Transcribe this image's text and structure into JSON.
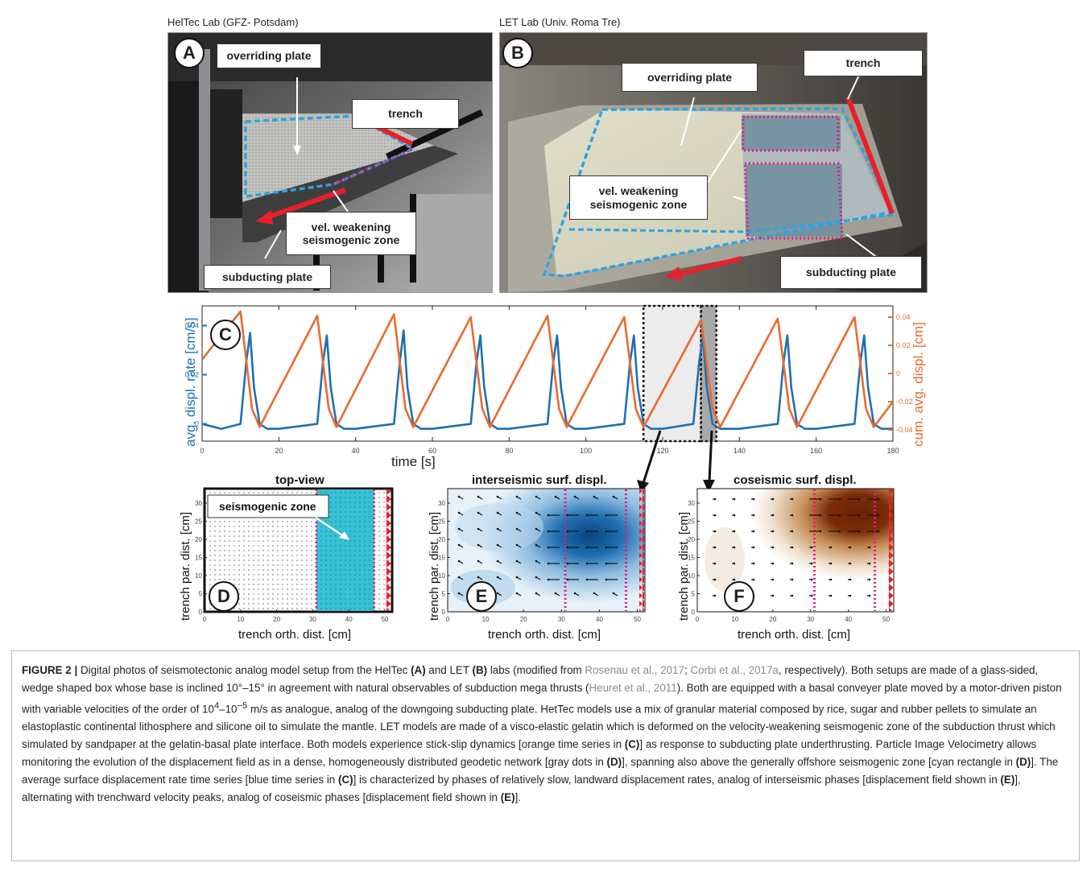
{
  "panel_a": {
    "title": "HelTec Lab (GFZ- Potsdam)",
    "letter": "A",
    "labels": {
      "overriding": "overriding plate",
      "trench": "trench",
      "seismogenic_1": "vel. weakening",
      "seismogenic_2": "seismogenic zone",
      "subducting": "subducting plate"
    }
  },
  "panel_b": {
    "title": "LET Lab (Univ. Roma Tre)",
    "letter": "B",
    "labels": {
      "overriding": "overriding plate",
      "trench": "trench",
      "seismogenic_1": "vel. weakening",
      "seismogenic_2": "seismogenic zone",
      "subducting": "subducting plate"
    }
  },
  "chart_data": [
    {
      "type": "line",
      "panel": "C",
      "xlabel": "time [s]",
      "ylabel_left": "avg. displ. rate [cm/s]",
      "ylabel_right": "cum. avg. displ. [cm]",
      "xlim": [
        0,
        180
      ],
      "ylim_left": [
        -0.007,
        0.048
      ],
      "ylim_right": [
        -0.048,
        0.048
      ],
      "xticks": [
        "0",
        "20",
        "40",
        "60",
        "80",
        "100",
        "120",
        "140",
        "160",
        "180"
      ],
      "yticks_left": [
        "0",
        "0.02",
        "0.04"
      ],
      "yticks_right": [
        "-0.04",
        "-0.02",
        "0",
        "0.02",
        "0.04"
      ],
      "series": [
        {
          "color": "#1f6fb2",
          "axis": "left",
          "x": [
            0,
            5,
            10,
            11.5,
            12.5,
            13.5,
            15,
            17,
            20,
            30,
            31.5,
            32.5,
            33.5,
            35,
            37,
            40,
            50,
            51.5,
            52.5,
            53.5,
            55,
            57,
            60,
            70,
            71.5,
            72.5,
            73.5,
            75,
            77,
            80,
            90,
            91.5,
            92.5,
            93.5,
            95,
            97,
            100,
            110,
            111.5,
            112.5,
            113.5,
            115,
            117,
            120,
            128,
            129.5,
            130.5,
            131.5,
            133,
            135,
            140,
            150,
            151.5,
            152.5,
            153.5,
            155,
            157,
            160,
            170,
            171.5,
            172.5,
            173.5,
            175,
            177,
            180
          ],
          "values": [
            0,
            -0.002,
            0,
            0.025,
            0.037,
            0.015,
            0,
            -0.002,
            -0.002,
            0,
            0.025,
            0.036,
            0.015,
            0,
            -0.002,
            -0.002,
            0,
            0.025,
            0.038,
            0.015,
            0,
            -0.002,
            -0.002,
            0,
            0.025,
            0.036,
            0.015,
            0,
            -0.002,
            -0.002,
            0,
            0.025,
            0.036,
            0.015,
            0,
            -0.002,
            -0.002,
            0,
            0.025,
            0.036,
            0.015,
            0,
            -0.002,
            -0.002,
            0,
            0.025,
            0.036,
            0.015,
            0,
            -0.002,
            -0.002,
            0,
            0.025,
            0.036,
            0.015,
            0,
            -0.002,
            -0.002,
            0,
            0.025,
            0.036,
            0.015,
            0,
            -0.002,
            -0.002
          ]
        },
        {
          "color": "#ec6a2c",
          "axis": "right",
          "x": [
            0,
            10,
            13,
            15,
            30,
            33,
            35,
            50,
            53,
            55,
            70,
            73,
            75,
            90,
            93,
            95,
            110,
            113,
            115,
            130,
            133,
            135,
            150,
            153,
            155,
            170,
            173,
            175,
            180
          ],
          "values": [
            0.01,
            0.044,
            -0.025,
            -0.038,
            0.041,
            -0.025,
            -0.038,
            0.042,
            -0.025,
            -0.038,
            0.04,
            -0.025,
            -0.038,
            0.041,
            -0.025,
            -0.038,
            0.04,
            -0.025,
            -0.038,
            0.038,
            -0.025,
            -0.038,
            0.039,
            -0.025,
            -0.038,
            0.04,
            -0.025,
            -0.038,
            -0.02
          ]
        }
      ],
      "highlights": [
        {
          "kind": "interseismic",
          "x": [
            115,
            130
          ]
        },
        {
          "kind": "coseismic",
          "x": [
            130,
            134
          ]
        }
      ]
    },
    {
      "type": "heatmap",
      "panel": "D",
      "title": "top-view",
      "xlabel": "trench orth. dist. [cm]",
      "ylabel": "trench par. dist. [cm]",
      "xlim": [
        0,
        52
      ],
      "ylim": [
        0,
        34
      ],
      "xticks": [
        "0",
        "10",
        "20",
        "30",
        "40",
        "50"
      ],
      "yticks": [
        "0",
        "5",
        "10",
        "15",
        "20",
        "25",
        "30"
      ],
      "seismogenic_zone_x": [
        31,
        47
      ],
      "label": "seismogenic zone"
    },
    {
      "type": "heatmap",
      "panel": "E",
      "title": "interseismic surf. displ.",
      "xlabel": "trench orth. dist. [cm]",
      "ylabel": "trench par. dist. [cm]",
      "xlim": [
        0,
        52
      ],
      "ylim": [
        0,
        34
      ],
      "xticks": [
        "0",
        "10",
        "20",
        "30",
        "40",
        "50"
      ],
      "yticks": [
        "0",
        "5",
        "10",
        "15",
        "20",
        "25",
        "30"
      ]
    },
    {
      "type": "heatmap",
      "panel": "F",
      "title": "coseismic surf. displ.",
      "xlabel": "trench orth. dist. [cm]",
      "ylabel": "trench par. dist. [cm]",
      "xlim": [
        0,
        52
      ],
      "ylim": [
        0,
        34
      ],
      "xticks": [
        "0",
        "10",
        "20",
        "30",
        "40",
        "50"
      ],
      "yticks": [
        "0",
        "5",
        "10",
        "15",
        "20",
        "25",
        "30"
      ]
    }
  ],
  "colors": {
    "blue_series": "#1f6fb2",
    "orange_series": "#ec6a2c",
    "cyan_zone": "#35c2d4",
    "magenta_dotted": "#e6197f",
    "trench_red": "#e8202a",
    "interseismic_blue": "#0b5394",
    "coseismic_brown": "#7a2c07"
  },
  "caption": {
    "label": "FIGURE 2 |",
    "s1": " Digital photos of seismotectonic analog model setup from the HelTec ",
    "s2": " and LET ",
    "s3": " labs (modified from ",
    "cite1": "Rosenau et al., 2017",
    "s4": "; ",
    "cite2": "Corbi et al., 2017a",
    "s5": ", respectively). Both setups are made of a glass-sided, wedge shaped box whose base is inclined 10°–15° in agreement with natural observables of subduction mega thrusts (",
    "cite3": "Heuret et al., 2011",
    "s6": "). Both are equipped with a basal conveyer plate moved by a motor-driven piston with variable velocities of the order of 10",
    "sup1": "4",
    "s7": "–10",
    "sup2": "−5",
    "s8": " m/s as analogue, analog of the downgoing subducting plate. HetTec models use a mix of granular material composed by rice, sugar and rubber pellets to simulate an elastoplastic continental lithosphere and silicone oil to simulate the mantle. LET models are made of a visco-elastic gelatin which is deformed on the velocity-weakening seismogenic zone of the subduction thrust which simulated by sandpaper at the gelatin-basal plate interface. Both models experience stick-slip dynamics [orange time series in ",
    "s9": "] as response to subducting plate underthrusting. Particle Image Velocimetry allows monitoring the evolution of the displacement field as in a dense, homogeneously distributed geodetic network [gray dots in ",
    "s10": "], spanning also above the generally offshore seismogenic zone [cyan rectangle in ",
    "s11": "]. The average surface displacement rate time series [blue time series in ",
    "s12": "] is characterized by phases of relatively slow, landward displacement rates, analog of interseismic phases [displacement field shown in ",
    "s13": "], alternating with trenchward velocity peaks, analog of coseismic phases [displacement field shown in ",
    "s14": "].",
    "refA": "(A)",
    "refB": "(B)",
    "refC": "(C)",
    "refD": "(D)",
    "refE": "(E)"
  }
}
